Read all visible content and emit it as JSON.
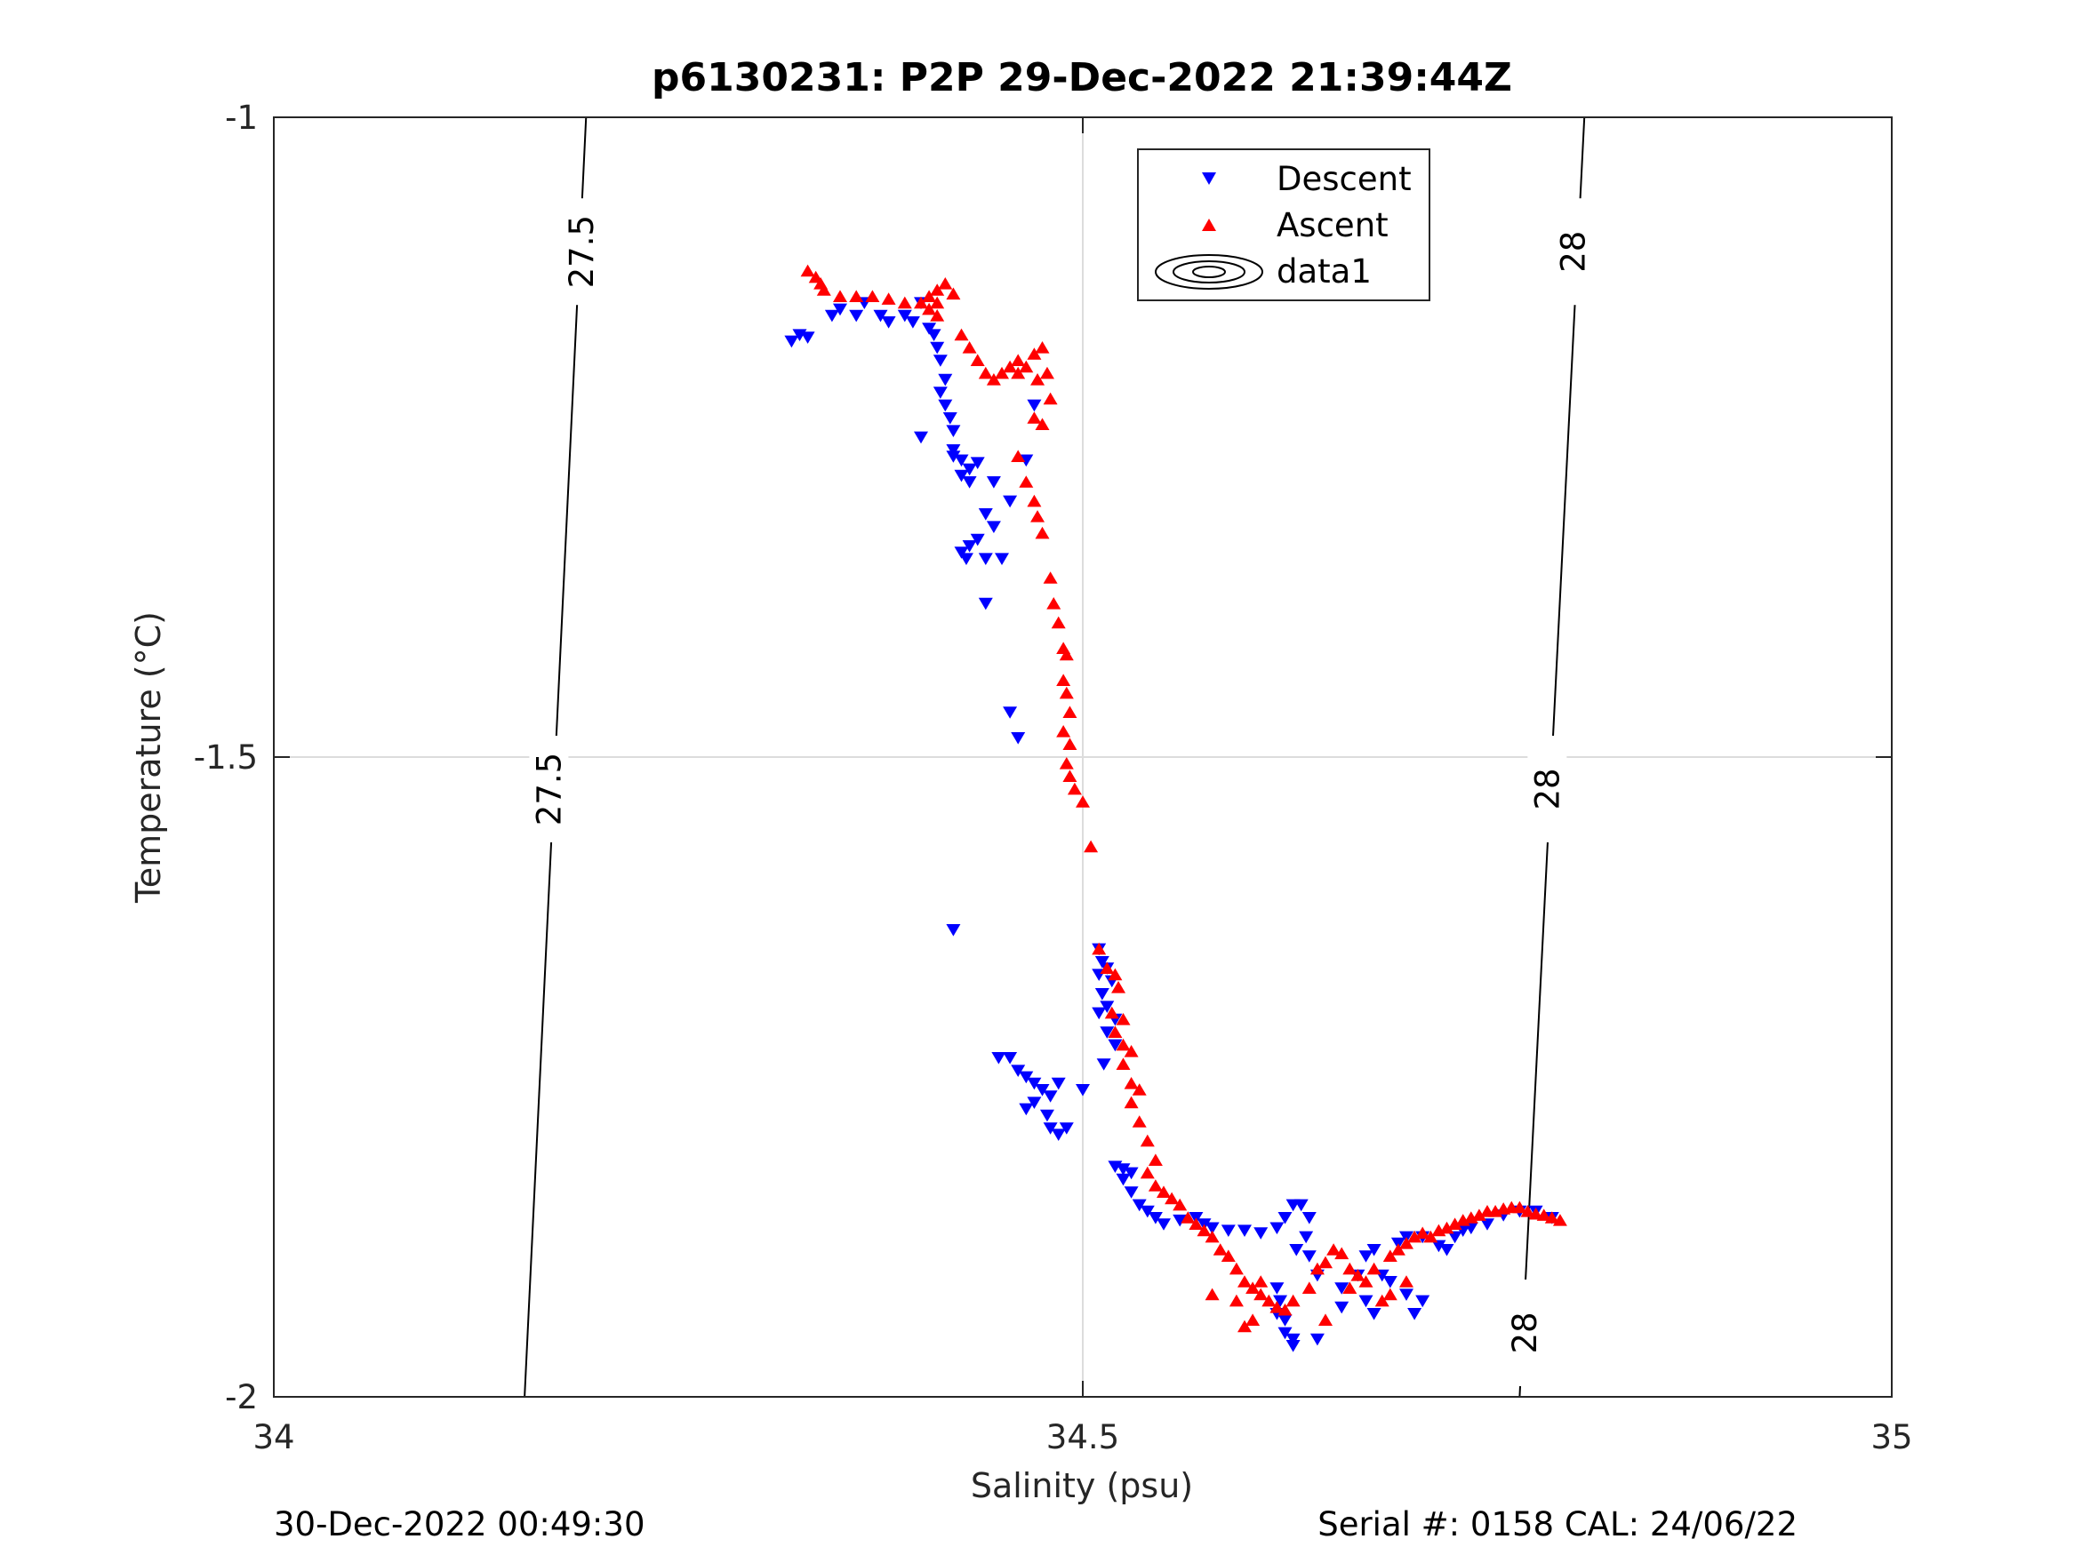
{
  "chart_data": {
    "type": "scatter",
    "title": "p6130231: P2P 29-Dec-2022 21:39:44Z",
    "xlabel": "Salinity (psu)",
    "ylabel": "Temperature (°C)",
    "xlim": [
      34,
      35
    ],
    "ylim": [
      -2,
      -1
    ],
    "xticks": [
      "34",
      "34.5",
      "35"
    ],
    "yticks": [
      "-1",
      "-1.5",
      "-2"
    ],
    "grid": true,
    "legend_position": "top-center",
    "footer_left": "30-Dec-2022 00:49:30",
    "footer_right": "Serial #: 0158  CAL: 24/06/22",
    "contours": [
      {
        "label": "27.5",
        "points": [
          [
            34.193,
            -1.0
          ],
          [
            34.155,
            -2.0
          ]
        ]
      },
      {
        "label": "28",
        "points": [
          [
            34.81,
            -1.0
          ],
          [
            34.77,
            -2.0
          ]
        ]
      }
    ],
    "contour_labels": [
      {
        "text": "27.5",
        "x": 34.19,
        "y": -1.105
      },
      {
        "text": "27.5",
        "x": 34.17,
        "y": -1.525
      },
      {
        "text": "28",
        "x": 34.803,
        "y": -1.105
      },
      {
        "text": "28",
        "x": 34.787,
        "y": -1.525
      },
      {
        "text": "28",
        "x": 34.773,
        "y": -1.95
      }
    ],
    "series": [
      {
        "name": "Descent",
        "marker": "triangle-down",
        "color": "#0000ff",
        "points": [
          [
            34.32,
            -1.175
          ],
          [
            34.325,
            -1.17
          ],
          [
            34.33,
            -1.172
          ],
          [
            34.345,
            -1.155
          ],
          [
            34.35,
            -1.15
          ],
          [
            34.36,
            -1.155
          ],
          [
            34.365,
            -1.145
          ],
          [
            34.375,
            -1.155
          ],
          [
            34.38,
            -1.16
          ],
          [
            34.39,
            -1.155
          ],
          [
            34.395,
            -1.16
          ],
          [
            34.4,
            -1.145
          ],
          [
            34.405,
            -1.165
          ],
          [
            34.408,
            -1.17
          ],
          [
            34.41,
            -1.18
          ],
          [
            34.412,
            -1.19
          ],
          [
            34.415,
            -1.205
          ],
          [
            34.412,
            -1.215
          ],
          [
            34.415,
            -1.225
          ],
          [
            34.418,
            -1.235
          ],
          [
            34.42,
            -1.245
          ],
          [
            34.42,
            -1.26
          ],
          [
            34.425,
            -1.268
          ],
          [
            34.42,
            -1.265
          ],
          [
            34.43,
            -1.275
          ],
          [
            34.435,
            -1.27
          ],
          [
            34.43,
            -1.285
          ],
          [
            34.445,
            -1.285
          ],
          [
            34.44,
            -1.31
          ],
          [
            34.435,
            -1.33
          ],
          [
            34.428,
            -1.345
          ],
          [
            34.43,
            -1.335
          ],
          [
            34.425,
            -1.34
          ],
          [
            34.44,
            -1.345
          ],
          [
            34.45,
            -1.345
          ],
          [
            34.445,
            -1.32
          ],
          [
            34.455,
            -1.3
          ],
          [
            34.465,
            -1.268
          ],
          [
            34.47,
            -1.225
          ],
          [
            34.4,
            -1.25
          ],
          [
            34.425,
            -1.28
          ],
          [
            34.44,
            -1.38
          ],
          [
            34.455,
            -1.465
          ],
          [
            34.46,
            -1.485
          ],
          [
            34.42,
            -1.635
          ],
          [
            34.448,
            -1.735
          ],
          [
            34.455,
            -1.735
          ],
          [
            34.46,
            -1.745
          ],
          [
            34.465,
            -1.75
          ],
          [
            34.47,
            -1.755
          ],
          [
            34.475,
            -1.76
          ],
          [
            34.48,
            -1.765
          ],
          [
            34.47,
            -1.77
          ],
          [
            34.465,
            -1.775
          ],
          [
            34.478,
            -1.78
          ],
          [
            34.48,
            -1.79
          ],
          [
            34.485,
            -1.795
          ],
          [
            34.49,
            -1.79
          ],
          [
            34.485,
            -1.755
          ],
          [
            34.5,
            -1.76
          ],
          [
            34.51,
            -1.65
          ],
          [
            34.512,
            -1.66
          ],
          [
            34.515,
            -1.665
          ],
          [
            34.51,
            -1.67
          ],
          [
            34.518,
            -1.675
          ],
          [
            34.512,
            -1.685
          ],
          [
            34.515,
            -1.695
          ],
          [
            34.51,
            -1.7
          ],
          [
            34.52,
            -1.705
          ],
          [
            34.515,
            -1.715
          ],
          [
            34.52,
            -1.725
          ],
          [
            34.513,
            -1.74
          ],
          [
            34.52,
            -1.82
          ],
          [
            34.525,
            -1.822
          ],
          [
            34.53,
            -1.825
          ],
          [
            34.525,
            -1.83
          ],
          [
            34.53,
            -1.84
          ],
          [
            34.535,
            -1.85
          ],
          [
            34.54,
            -1.855
          ],
          [
            34.545,
            -1.86
          ],
          [
            34.55,
            -1.865
          ],
          [
            34.56,
            -1.862
          ],
          [
            34.57,
            -1.86
          ],
          [
            34.575,
            -1.865
          ],
          [
            34.58,
            -1.868
          ],
          [
            34.59,
            -1.87
          ],
          [
            34.6,
            -1.87
          ],
          [
            34.61,
            -1.872
          ],
          [
            34.62,
            -1.868
          ],
          [
            34.625,
            -1.86
          ],
          [
            34.63,
            -1.85
          ],
          [
            34.635,
            -1.85
          ],
          [
            34.64,
            -1.86
          ],
          [
            34.638,
            -1.875
          ],
          [
            34.632,
            -1.885
          ],
          [
            34.64,
            -1.89
          ],
          [
            34.645,
            -1.905
          ],
          [
            34.62,
            -1.915
          ],
          [
            34.622,
            -1.925
          ],
          [
            34.62,
            -1.935
          ],
          [
            34.625,
            -1.94
          ],
          [
            34.625,
            -1.95
          ],
          [
            34.63,
            -1.955
          ],
          [
            34.63,
            -1.96
          ],
          [
            34.645,
            -1.955
          ],
          [
            34.66,
            -1.915
          ],
          [
            34.67,
            -1.905
          ],
          [
            34.675,
            -1.89
          ],
          [
            34.68,
            -1.885
          ],
          [
            34.695,
            -1.88
          ],
          [
            34.7,
            -1.875
          ],
          [
            34.71,
            -1.875
          ],
          [
            34.72,
            -1.882
          ],
          [
            34.725,
            -1.885
          ],
          [
            34.73,
            -1.875
          ],
          [
            34.735,
            -1.87
          ],
          [
            34.74,
            -1.868
          ],
          [
            34.75,
            -1.865
          ],
          [
            34.76,
            -1.858
          ],
          [
            34.77,
            -1.855
          ],
          [
            34.78,
            -1.855
          ],
          [
            34.79,
            -1.86
          ],
          [
            34.675,
            -1.925
          ],
          [
            34.66,
            -1.93
          ],
          [
            34.68,
            -1.935
          ],
          [
            34.7,
            -1.92
          ],
          [
            34.705,
            -1.935
          ],
          [
            34.71,
            -1.925
          ],
          [
            34.69,
            -1.91
          ],
          [
            34.685,
            -1.905
          ]
        ]
      },
      {
        "name": "Ascent",
        "marker": "triangle-up",
        "color": "#ff0000",
        "points": [
          [
            34.33,
            -1.12
          ],
          [
            34.335,
            -1.125
          ],
          [
            34.338,
            -1.13
          ],
          [
            34.34,
            -1.135
          ],
          [
            34.35,
            -1.14
          ],
          [
            34.36,
            -1.14
          ],
          [
            34.37,
            -1.14
          ],
          [
            34.38,
            -1.142
          ],
          [
            34.39,
            -1.145
          ],
          [
            34.4,
            -1.145
          ],
          [
            34.405,
            -1.15
          ],
          [
            34.41,
            -1.155
          ],
          [
            34.41,
            -1.145
          ],
          [
            34.405,
            -1.14
          ],
          [
            34.41,
            -1.135
          ],
          [
            34.415,
            -1.13
          ],
          [
            34.42,
            -1.138
          ],
          [
            34.425,
            -1.17
          ],
          [
            34.43,
            -1.18
          ],
          [
            34.435,
            -1.19
          ],
          [
            34.44,
            -1.2
          ],
          [
            34.445,
            -1.205
          ],
          [
            34.45,
            -1.2
          ],
          [
            34.455,
            -1.195
          ],
          [
            34.46,
            -1.19
          ],
          [
            34.465,
            -1.195
          ],
          [
            34.47,
            -1.185
          ],
          [
            34.475,
            -1.18
          ],
          [
            34.46,
            -1.2
          ],
          [
            34.472,
            -1.205
          ],
          [
            34.478,
            -1.2
          ],
          [
            34.48,
            -1.22
          ],
          [
            34.47,
            -1.235
          ],
          [
            34.475,
            -1.24
          ],
          [
            34.46,
            -1.265
          ],
          [
            34.465,
            -1.285
          ],
          [
            34.47,
            -1.3
          ],
          [
            34.472,
            -1.312
          ],
          [
            34.475,
            -1.325
          ],
          [
            34.48,
            -1.36
          ],
          [
            34.482,
            -1.38
          ],
          [
            34.485,
            -1.395
          ],
          [
            34.488,
            -1.415
          ],
          [
            34.49,
            -1.42
          ],
          [
            34.488,
            -1.44
          ],
          [
            34.49,
            -1.45
          ],
          [
            34.492,
            -1.465
          ],
          [
            34.488,
            -1.48
          ],
          [
            34.492,
            -1.49
          ],
          [
            34.49,
            -1.505
          ],
          [
            34.492,
            -1.515
          ],
          [
            34.495,
            -1.525
          ],
          [
            34.5,
            -1.535
          ],
          [
            34.505,
            -1.57
          ],
          [
            34.51,
            -1.65
          ],
          [
            34.515,
            -1.665
          ],
          [
            34.52,
            -1.67
          ],
          [
            34.522,
            -1.68
          ],
          [
            34.518,
            -1.7
          ],
          [
            34.525,
            -1.705
          ],
          [
            34.52,
            -1.715
          ],
          [
            34.525,
            -1.725
          ],
          [
            34.53,
            -1.73
          ],
          [
            34.525,
            -1.74
          ],
          [
            34.53,
            -1.755
          ],
          [
            34.535,
            -1.76
          ],
          [
            34.53,
            -1.77
          ],
          [
            34.535,
            -1.785
          ],
          [
            34.54,
            -1.8
          ],
          [
            34.545,
            -1.815
          ],
          [
            34.54,
            -1.825
          ],
          [
            34.545,
            -1.835
          ],
          [
            34.55,
            -1.84
          ],
          [
            34.555,
            -1.845
          ],
          [
            34.56,
            -1.85
          ],
          [
            34.565,
            -1.86
          ],
          [
            34.57,
            -1.865
          ],
          [
            34.575,
            -1.87
          ],
          [
            34.58,
            -1.875
          ],
          [
            34.585,
            -1.885
          ],
          [
            34.59,
            -1.89
          ],
          [
            34.595,
            -1.9
          ],
          [
            34.6,
            -1.91
          ],
          [
            34.605,
            -1.915
          ],
          [
            34.61,
            -1.92
          ],
          [
            34.615,
            -1.925
          ],
          [
            34.62,
            -1.93
          ],
          [
            34.625,
            -1.932
          ],
          [
            34.63,
            -1.925
          ],
          [
            34.64,
            -1.915
          ],
          [
            34.645,
            -1.9
          ],
          [
            34.65,
            -1.895
          ],
          [
            34.655,
            -1.885
          ],
          [
            34.66,
            -1.888
          ],
          [
            34.665,
            -1.9
          ],
          [
            34.67,
            -1.905
          ],
          [
            34.675,
            -1.91
          ],
          [
            34.68,
            -1.9
          ],
          [
            34.69,
            -1.89
          ],
          [
            34.695,
            -1.885
          ],
          [
            34.7,
            -1.88
          ],
          [
            34.705,
            -1.875
          ],
          [
            34.71,
            -1.872
          ],
          [
            34.715,
            -1.875
          ],
          [
            34.72,
            -1.87
          ],
          [
            34.725,
            -1.868
          ],
          [
            34.73,
            -1.865
          ],
          [
            34.735,
            -1.862
          ],
          [
            34.74,
            -1.86
          ],
          [
            34.745,
            -1.858
          ],
          [
            34.75,
            -1.855
          ],
          [
            34.755,
            -1.855
          ],
          [
            34.76,
            -1.853
          ],
          [
            34.765,
            -1.852
          ],
          [
            34.77,
            -1.852
          ],
          [
            34.775,
            -1.855
          ],
          [
            34.78,
            -1.857
          ],
          [
            34.785,
            -1.858
          ],
          [
            34.79,
            -1.86
          ],
          [
            34.795,
            -1.862
          ],
          [
            34.6,
            -1.945
          ],
          [
            34.605,
            -1.94
          ],
          [
            34.58,
            -1.92
          ],
          [
            34.595,
            -1.925
          ],
          [
            34.61,
            -1.91
          ],
          [
            34.7,
            -1.91
          ],
          [
            34.665,
            -1.915
          ],
          [
            34.69,
            -1.92
          ],
          [
            34.685,
            -1.925
          ],
          [
            34.65,
            -1.94
          ]
        ]
      }
    ]
  },
  "legend": {
    "entries": [
      {
        "label": "Descent",
        "marker": "triangle-down",
        "color": "#0000ff"
      },
      {
        "label": "Ascent",
        "marker": "triangle-up",
        "color": "#ff0000"
      },
      {
        "label": "data1",
        "marker": "contour-icon",
        "color": "#000000"
      }
    ]
  }
}
